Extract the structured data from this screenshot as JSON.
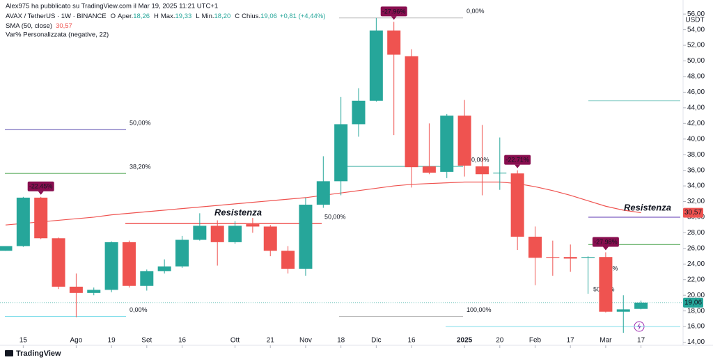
{
  "header": {
    "publisher": "Alex975 ha pubblicato su TradingView.com il Mar 19, 2025 11:21 UTC+1",
    "symbol": "AVAX / TetherUS · 1W · BINANCE",
    "ohlc": [
      {
        "key": "O",
        "name": "Aper.",
        "value": "18,26"
      },
      {
        "key": "H",
        "name": "Max.",
        "value": "19,33"
      },
      {
        "key": "L",
        "name": "Min.",
        "value": "18,20"
      },
      {
        "key": "C",
        "name": "Chius.",
        "value": "19,06"
      }
    ],
    "change": "+0,81 (+4,44%)",
    "sma": "SMA (50, close)",
    "sma_value": "30,57",
    "indicator": "Var% Personalizzata (negative, 22)",
    "brand": "TradingView"
  },
  "chart_data": {
    "type": "candlestick",
    "y_unit": "USDT",
    "up_color": "#26a69a",
    "down_color": "#ef5350",
    "open": [
      25.7,
      26.3,
      32.5,
      27.3,
      21.1,
      20.3,
      20.7,
      26.8,
      21.2,
      23.1,
      23.7,
      27.1,
      28.9,
      26.8,
      29.1,
      28.8,
      25.7,
      23.4,
      31.6,
      34.6,
      41.9,
      44.9,
      53.9,
      50.6,
      36.5,
      35.8,
      43.0,
      36.5,
      35.6,
      35.6,
      27.5,
      24.9,
      24.9,
      24.8,
      24.9,
      17.9,
      18.26
    ],
    "high": [
      26.3,
      32.6,
      32.6,
      27.4,
      22.8,
      21.0,
      26.9,
      27.0,
      23.3,
      24.6,
      27.6,
      30.5,
      29.6,
      29.5,
      29.9,
      29.0,
      26.3,
      32.5,
      37.8,
      45.4,
      46.5,
      55.5,
      55.0,
      51.5,
      42.0,
      43.2,
      45.0,
      41.8,
      40.2,
      36.0,
      28.8,
      27.0,
      26.5,
      25.0,
      25.5,
      20.0,
      19.33
    ],
    "low": [
      25.7,
      26.2,
      27.2,
      20.8,
      17.2,
      20.0,
      20.4,
      21.0,
      20.6,
      22.8,
      23.5,
      27.0,
      23.8,
      26.6,
      28.0,
      25.0,
      22.8,
      22.5,
      31.2,
      32.8,
      40.3,
      44.8,
      40.5,
      33.8,
      35.5,
      35.0,
      35.2,
      32.8,
      33.5,
      25.8,
      21.3,
      22.5,
      23.0,
      20.2,
      17.8,
      15.2,
      18.2
    ],
    "close": [
      26.3,
      32.5,
      27.3,
      21.1,
      20.3,
      20.7,
      26.8,
      21.2,
      23.1,
      23.7,
      27.1,
      28.9,
      26.8,
      28.9,
      28.8,
      25.7,
      23.4,
      31.6,
      34.6,
      41.9,
      44.9,
      53.9,
      50.8,
      36.4,
      35.7,
      43.0,
      36.6,
      35.5,
      35.7,
      27.5,
      24.8,
      24.8,
      24.7,
      24.9,
      17.9,
      18.2,
      19.06
    ],
    "sma": {
      "color": "#ef5350",
      "values": [
        29.0,
        29.2,
        29.4,
        29.6,
        29.8,
        30.0,
        30.3,
        30.5,
        30.7,
        30.9,
        31.1,
        31.3,
        31.5,
        31.7,
        31.9,
        32.1,
        32.3,
        32.5,
        32.8,
        33.1,
        33.4,
        33.7,
        34.0,
        34.2,
        34.3,
        34.4,
        34.5,
        34.5,
        34.5,
        34.3,
        33.9,
        33.4,
        32.8,
        32.1,
        31.4,
        30.9,
        30.57
      ]
    },
    "ylim": [
      13.6,
      57.8
    ],
    "yticks": [
      {
        "value": 14,
        "label": "14,00"
      },
      {
        "value": 16,
        "label": "16,00"
      },
      {
        "value": 18,
        "label": "18,00"
      },
      {
        "value": 20,
        "label": "20,00"
      },
      {
        "value": 22,
        "label": "22,00"
      },
      {
        "value": 24,
        "label": "24,00"
      },
      {
        "value": 26,
        "label": "26,00"
      },
      {
        "value": 28,
        "label": "28,00"
      },
      {
        "value": 30,
        "label": "30,00"
      },
      {
        "value": 32,
        "label": "32,00"
      },
      {
        "value": 34,
        "label": "34,00"
      },
      {
        "value": 36,
        "label": "36,00"
      },
      {
        "value": 38,
        "label": "38,00"
      },
      {
        "value": 40,
        "label": "40,00"
      },
      {
        "value": 42,
        "label": "42,00"
      },
      {
        "value": 44,
        "label": "44,00"
      },
      {
        "value": 46,
        "label": "46,00"
      },
      {
        "value": 48,
        "label": "48,00"
      },
      {
        "value": 50,
        "label": "50,00"
      },
      {
        "value": 52,
        "label": "52,00"
      },
      {
        "value": 54,
        "label": "54,00"
      },
      {
        "value": 56,
        "label": "56,00"
      }
    ],
    "xticks": [
      {
        "value": 1,
        "label": "15"
      },
      {
        "value": 4,
        "label": "Ago"
      },
      {
        "value": 6,
        "label": "19"
      },
      {
        "value": 8,
        "label": "Set"
      },
      {
        "value": 10,
        "label": "16"
      },
      {
        "value": 13,
        "label": "Ott"
      },
      {
        "value": 15,
        "label": "21"
      },
      {
        "value": 17,
        "label": "Nov"
      },
      {
        "value": 19,
        "label": "18"
      },
      {
        "value": 21,
        "label": "Dic"
      },
      {
        "value": 23,
        "label": "16"
      },
      {
        "value": 26,
        "label": "2025"
      },
      {
        "value": 28,
        "label": "20"
      },
      {
        "value": 30,
        "label": "Feb"
      },
      {
        "value": 32,
        "label": "17"
      },
      {
        "value": 34,
        "label": "Mar"
      },
      {
        "value": 36,
        "label": "17"
      }
    ],
    "price_labels": [
      {
        "value": 30.57,
        "label": "30,57",
        "color": "#ef5350"
      },
      {
        "value": 19.06,
        "label": "19,06",
        "color": "#26a69a"
      }
    ],
    "levels": [
      {
        "label": "50,00%",
        "value": 41.2,
        "color": "#5b4fb0"
      },
      {
        "label": "38,20%",
        "value": 35.6,
        "color": "#43a047"
      },
      {
        "label": "0,00%",
        "value": 17.3,
        "color": "#80deea"
      },
      {
        "label": "0,00%",
        "value": 55.5,
        "color": "#b8b8b8"
      },
      {
        "label": "0,00%",
        "value": 36.5,
        "color": "#26a69a"
      },
      {
        "label": "100,00%",
        "value": 17.3,
        "color": "#b8b8b8"
      },
      {
        "label": "50,00%",
        "value": 29.2,
        "color": "#ef5350"
      },
      {
        "value": 44.9,
        "color": "#80cbc4"
      },
      {
        "value": 30.0,
        "color": "#5e35b1"
      },
      {
        "value": 26.5,
        "color": "#43a047"
      },
      {
        "label": "0,00%",
        "value": 23.4,
        "color": "#26c6da"
      },
      {
        "label": "50,00%",
        "value": 20.7,
        "color": "#c8c8c8"
      },
      {
        "value": 16.0,
        "color": "#80deea"
      }
    ],
    "annotations": [
      {
        "text": "Resistenza",
        "color": "#ef5350"
      },
      {
        "text": "Resistenza",
        "color": "#7b1fa2"
      }
    ],
    "tags": [
      {
        "value": -22.45,
        "label": "-22.45%"
      },
      {
        "value": -27.96,
        "label": "-27.96%"
      },
      {
        "value": -22.71,
        "label": "-22.71%"
      },
      {
        "value": -27.98,
        "label": "-27.98%"
      }
    ]
  }
}
